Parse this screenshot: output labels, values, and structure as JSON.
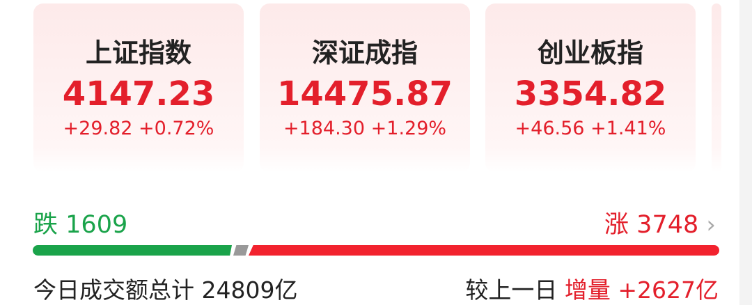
{
  "indices": [
    {
      "name": "上证指数",
      "value": "4147.23",
      "change": "+29.82",
      "pct": "+0.72%"
    },
    {
      "name": "深证成指",
      "value": "14475.87",
      "change": "+184.30",
      "pct": "+1.29%"
    },
    {
      "name": "创业板指",
      "value": "3354.82",
      "change": "+46.56",
      "pct": "+1.41%"
    }
  ],
  "breadth": {
    "down_label": "跌",
    "down": "1609",
    "up_label": "涨",
    "up": "3748",
    "chevron": "›",
    "down_pct": 29,
    "flat_pct": 2,
    "up_pct": 69
  },
  "volume": {
    "label": "今日成交额总计",
    "value": "24809亿",
    "compare_label": "较上一日",
    "delta_label": "增量",
    "delta": "+2627亿"
  },
  "colors": {
    "up": "#e31f2b",
    "down": "#1aa34a",
    "flat": "#999999"
  }
}
